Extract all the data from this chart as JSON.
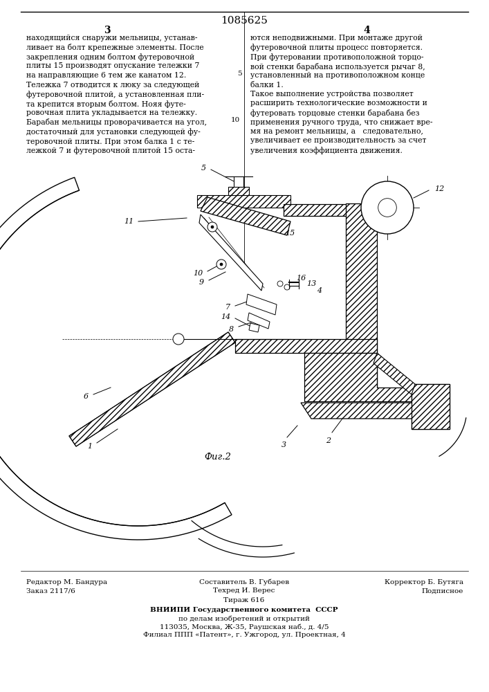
{
  "page_number_center": "1085625",
  "page_col_left": "3",
  "page_col_right": "4",
  "text_left": [
    "находящийся снаружи мельницы, устанав-",
    "ливает на болт крепежные элементы. После",
    "закрепления одним болтом футеровочной",
    "плиты 15 производят опускание тележки 7",
    "на направляющие 6 тем же канатом 12.",
    "Тележка 7 отводится к люку за следующей",
    "футеровочной плитой, а установленная пли-",
    "та крепится вторым болтом. Нояя футе-",
    "ровочная плита укладывается на тележку.",
    "Барабан мельницы проворачивается на угол,",
    "достаточный для установки следующей фу-",
    "теровочной плиты. При этом балка 1 с те-",
    "лежкой 7 и футеровочной плитой 15 оста-"
  ],
  "text_right": [
    "ются неподвижными. При монтаже другой",
    "футеровочной плиты процесс повторяется.",
    "При футеровании противоположной торцо-",
    "вой стенки барабана используется рычаг 8,",
    "установленный на противоположном конце",
    "балки 1.",
    "Такое выполнение устройства позволяет",
    "расширить технологические возможности и",
    "футеровать торцовые стенки барабана без",
    "применения ручного труда, что снижает вре-",
    "мя на ремонт мельницы, а   следовательно,",
    "увеличивает ее производительность за счет",
    "увеличения коэффициента движения."
  ],
  "fig_label": "Фиг.2",
  "footer_left1": "Редактор М. Бандура",
  "footer_center1": "Составитель В. Губарев",
  "footer_right1": "Корректор Б. Бутяга",
  "footer_left2": "Заказ 2117/6",
  "footer_center2": "Техред И. Верес",
  "footer_right2": "Подписное",
  "footer_center3": "Тираж 616",
  "footer_org": "ВНИИПИ Государственного комитета  СССР",
  "footer_org2": "по делам изобретений и открытий",
  "footer_addr": "113035, Москва, Ж-35, Раушская наб., д. 4/5",
  "footer_branch": "Филиал ППП «Патент», г. Ужгород, ул. Проектная, 4",
  "bg_color": "#ffffff",
  "text_color": "#000000"
}
